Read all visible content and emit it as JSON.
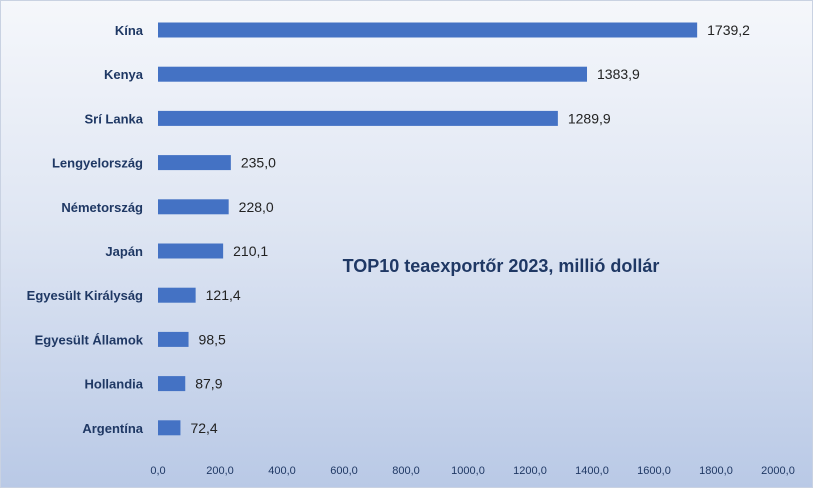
{
  "chart_data": {
    "type": "bar",
    "orientation": "horizontal",
    "title": "TOP10 teaexportőr 2023, millió dollár",
    "categories": [
      "Kína",
      "Kenya",
      "Srí Lanka",
      "Lengyelország",
      "Németország",
      "Japán",
      "Egyesült Királyság",
      "Egyesült Államok",
      "Hollandia",
      "Argentína"
    ],
    "values": [
      1739.2,
      1383.9,
      1289.9,
      235.0,
      228.0,
      210.1,
      121.4,
      98.5,
      87.9,
      72.4
    ],
    "value_labels": [
      "1739,2",
      "1383,9",
      "1289,9",
      "235,0",
      "228,0",
      "210,1",
      "121,4",
      "98,5",
      "87,9",
      "72,4"
    ],
    "x_ticks": [
      "0,0",
      "200,0",
      "400,0",
      "600,0",
      "800,0",
      "1000,0",
      "1200,0",
      "1400,0",
      "1600,0",
      "1800,0",
      "2000,0"
    ],
    "xlim": [
      0,
      2000
    ],
    "grid": false,
    "legend": "none",
    "bar_color": "#4472c4"
  }
}
